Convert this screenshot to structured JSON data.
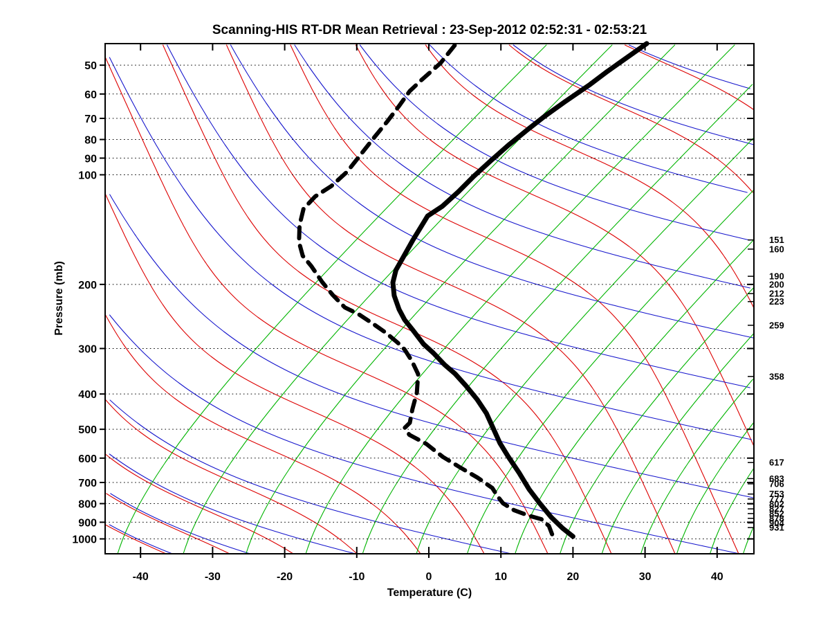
{
  "title": "Scanning-HIS RT-DR Mean Retrieval : 23-Sep-2012 02:52:31 - 02:53:21",
  "axes": {
    "x": {
      "label": "Temperature (C)",
      "ticks": [
        -40,
        -30,
        -20,
        -10,
        0,
        10,
        20,
        30,
        40
      ],
      "range": [
        -45,
        45
      ]
    },
    "y": {
      "label": "Pressure (mb)",
      "ticks": [
        50,
        60,
        70,
        80,
        90,
        100,
        200,
        300,
        400,
        500,
        600,
        700,
        800,
        900,
        1000
      ],
      "range_top_mb": 43.6,
      "range_bottom_mb": 1100
    }
  },
  "right_pressure_levels": [
    151,
    160,
    190,
    200,
    212,
    223,
    259,
    358,
    617,
    683,
    706,
    753,
    777,
    802,
    827,
    852,
    878,
    904,
    931
  ],
  "colors": {
    "dry_adiabat": "#dd0000",
    "moist_adiabat": "#1414cc",
    "isoline_green": "#00b400",
    "gridline": "#000000",
    "profile": "#000000",
    "frame": "#000000"
  },
  "chart_data": {
    "type": "line",
    "title": "Scanning-HIS RT-DR Mean Retrieval : 23-Sep-2012 02:52:31 - 02:53:21",
    "xlabel": "Temperature (C)",
    "ylabel": "Pressure (mb)",
    "x_range": [
      -45,
      45
    ],
    "y_log_range_mb": [
      43.6,
      1100
    ],
    "legend_position": "none",
    "grid": "dotted horizontal at labeled pressures",
    "series": [
      {
        "name": "temperature-profile",
        "style": "solid-thick-black",
        "points_p_T": [
          [
            43.6,
            -40.5
          ],
          [
            52.0,
            -42.1
          ],
          [
            56.5,
            -42.7
          ],
          [
            63.0,
            -43.8
          ],
          [
            69.1,
            -44.6
          ],
          [
            75.1,
            -45.1
          ],
          [
            83.0,
            -45.6
          ],
          [
            91.4,
            -45.9
          ],
          [
            101.1,
            -46.1
          ],
          [
            111.3,
            -46.1
          ],
          [
            122.1,
            -46.3
          ],
          [
            129.8,
            -47.0
          ],
          [
            151.2,
            -45.7
          ],
          [
            169.5,
            -44.6
          ],
          [
            182.6,
            -43.9
          ],
          [
            197.6,
            -42.6
          ],
          [
            214.7,
            -40.6
          ],
          [
            234.3,
            -38.0
          ],
          [
            250.2,
            -35.8
          ],
          [
            267.2,
            -33.2
          ],
          [
            291.7,
            -29.8
          ],
          [
            308.7,
            -27.2
          ],
          [
            332.6,
            -24.0
          ],
          [
            352.1,
            -21.3
          ],
          [
            379.2,
            -18.2
          ],
          [
            413.9,
            -14.7
          ],
          [
            451.8,
            -11.5
          ],
          [
            493.2,
            -8.7
          ],
          [
            545.4,
            -5.5
          ],
          [
            595.2,
            -2.4
          ],
          [
            658.4,
            1.3
          ],
          [
            731.4,
            5.0
          ],
          [
            798.6,
            8.4
          ],
          [
            871.4,
            11.9
          ],
          [
            934.6,
            15.0
          ],
          [
            984.9,
            17.6
          ]
        ]
      },
      {
        "name": "dewpoint-profile",
        "style": "dashed-thick-black",
        "points_p_T": [
          [
            44.1,
            -66.9
          ],
          [
            49.4,
            -66.4
          ],
          [
            54.8,
            -66.7
          ],
          [
            58.9,
            -66.8
          ],
          [
            64.9,
            -66.2
          ],
          [
            71.4,
            -65.7
          ],
          [
            79.0,
            -65.3
          ],
          [
            87.9,
            -64.8
          ],
          [
            98.0,
            -64.3
          ],
          [
            107.3,
            -64.5
          ],
          [
            114.7,
            -65.3
          ],
          [
            124.1,
            -65.2
          ],
          [
            137.5,
            -63.5
          ],
          [
            153.2,
            -61.2
          ],
          [
            167.0,
            -58.8
          ],
          [
            178.1,
            -56.2
          ],
          [
            196.9,
            -52.5
          ],
          [
            213.9,
            -49.2
          ],
          [
            231.4,
            -45.8
          ],
          [
            241.3,
            -43.0
          ],
          [
            255.7,
            -39.8
          ],
          [
            271.1,
            -36.7
          ],
          [
            289.1,
            -33.6
          ],
          [
            301.8,
            -31.7
          ],
          [
            324.4,
            -29.1
          ],
          [
            352.7,
            -26.4
          ],
          [
            396.6,
            -24.0
          ],
          [
            440.9,
            -22.3
          ],
          [
            479.9,
            -20.8
          ],
          [
            495.4,
            -20.8
          ],
          [
            517.7,
            -19.2
          ],
          [
            548.2,
            -15.6
          ],
          [
            595.2,
            -11.5
          ],
          [
            635.7,
            -7.7
          ],
          [
            678.9,
            -3.8
          ],
          [
            725.0,
            -0.3
          ],
          [
            764.4,
            1.6
          ],
          [
            798.6,
            3.3
          ],
          [
            834.2,
            5.8
          ],
          [
            863.6,
            8.6
          ],
          [
            882.6,
            10.8
          ],
          [
            921.5,
            12.8
          ],
          [
            971.2,
            14.4
          ]
        ]
      }
    ]
  }
}
